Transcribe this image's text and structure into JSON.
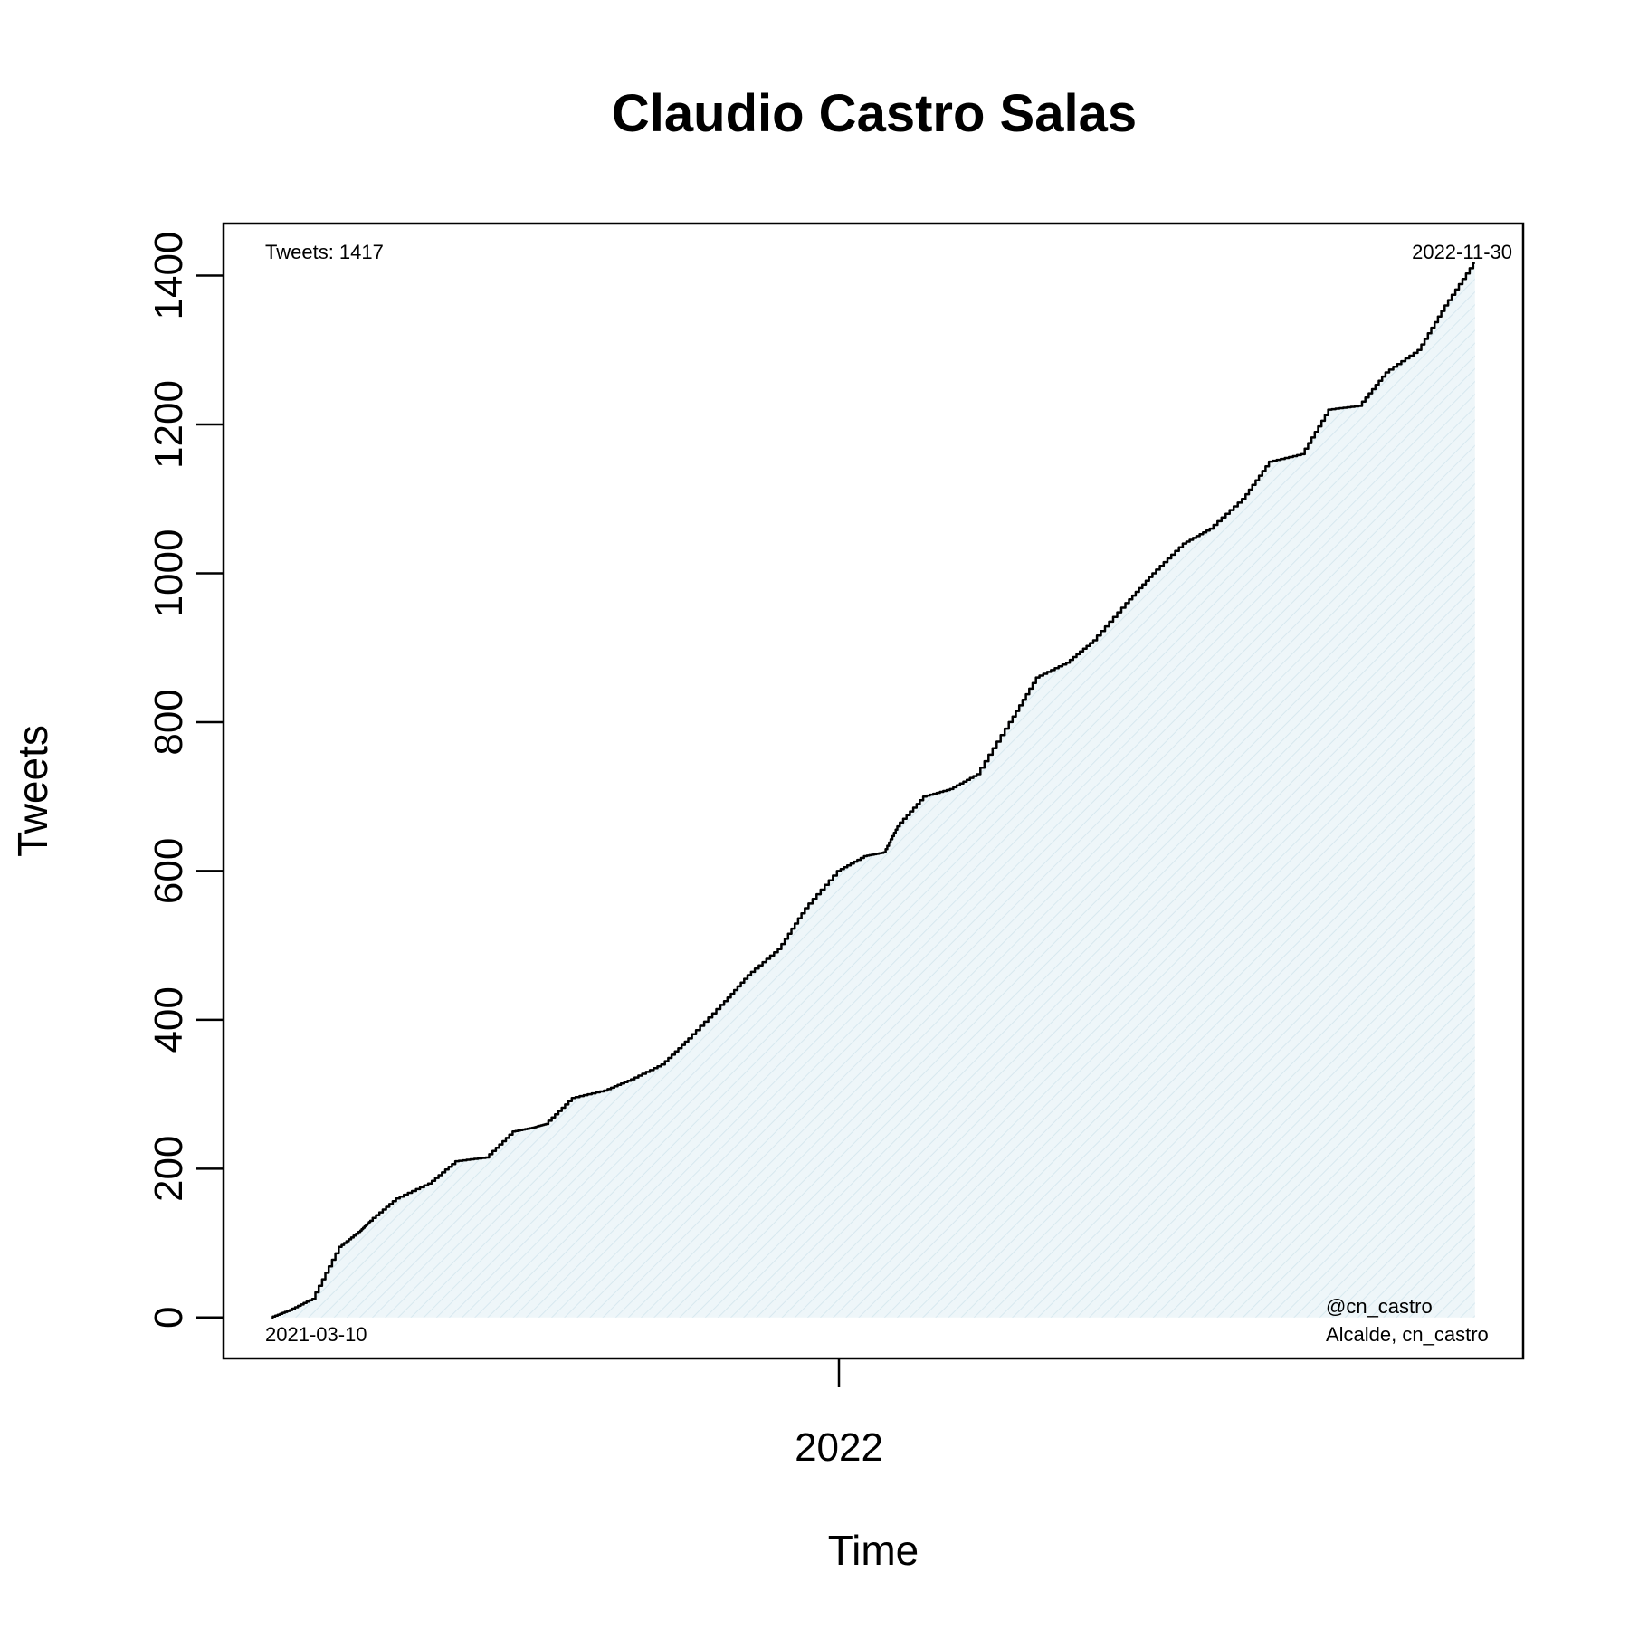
{
  "chart_data": {
    "type": "area",
    "title": "Claudio Castro Salas",
    "xlabel": "Time",
    "ylabel": "Tweets",
    "x_range": [
      "2021-03-10",
      "2022-11-30"
    ],
    "ylim": [
      -55,
      1470
    ],
    "y_ticks": [
      0,
      200,
      400,
      600,
      800,
      1000,
      1200,
      1400
    ],
    "x_ticks": [
      {
        "date": "2022-01-01",
        "label": "2022"
      }
    ],
    "grid": false,
    "fill_color": "#eaf4f8",
    "line_color": "#000000",
    "annotations": {
      "tweets_count": "Tweets: 1417",
      "end_date": "2022-11-30",
      "start_date": "2021-03-10",
      "handle": "@cn_castro",
      "description": "Alcalde, cn_castro"
    },
    "series": [
      {
        "x": [
          "2021-03-10",
          "2021-03-20",
          "2021-04-01",
          "2021-04-15",
          "2021-04-25",
          "2021-05-01",
          "2021-05-15",
          "2021-06-01",
          "2021-06-15",
          "2021-07-01",
          "2021-07-15",
          "2021-07-25",
          "2021-08-01",
          "2021-08-15",
          "2021-09-01",
          "2021-09-15",
          "2021-10-01",
          "2021-10-15",
          "2021-11-01",
          "2021-11-15",
          "2021-12-01",
          "2021-12-15",
          "2022-01-01",
          "2022-01-15",
          "2022-01-25",
          "2022-02-01",
          "2022-02-15",
          "2022-03-01",
          "2022-03-15",
          "2022-04-01",
          "2022-04-15",
          "2022-05-01",
          "2022-05-15",
          "2022-06-01",
          "2022-06-15",
          "2022-07-01",
          "2022-07-15",
          "2022-08-01",
          "2022-08-15",
          "2022-09-01",
          "2022-09-15",
          "2022-10-01",
          "2022-10-15",
          "2022-11-01",
          "2022-11-15",
          "2022-11-30"
        ],
        "y": [
          0,
          10,
          25,
          95,
          115,
          130,
          160,
          180,
          210,
          215,
          250,
          255,
          260,
          295,
          305,
          320,
          340,
          375,
          420,
          460,
          495,
          550,
          600,
          620,
          625,
          660,
          700,
          710,
          730,
          800,
          860,
          880,
          910,
          960,
          1000,
          1040,
          1060,
          1100,
          1150,
          1160,
          1220,
          1225,
          1270,
          1300,
          1360,
          1417
        ]
      }
    ]
  }
}
